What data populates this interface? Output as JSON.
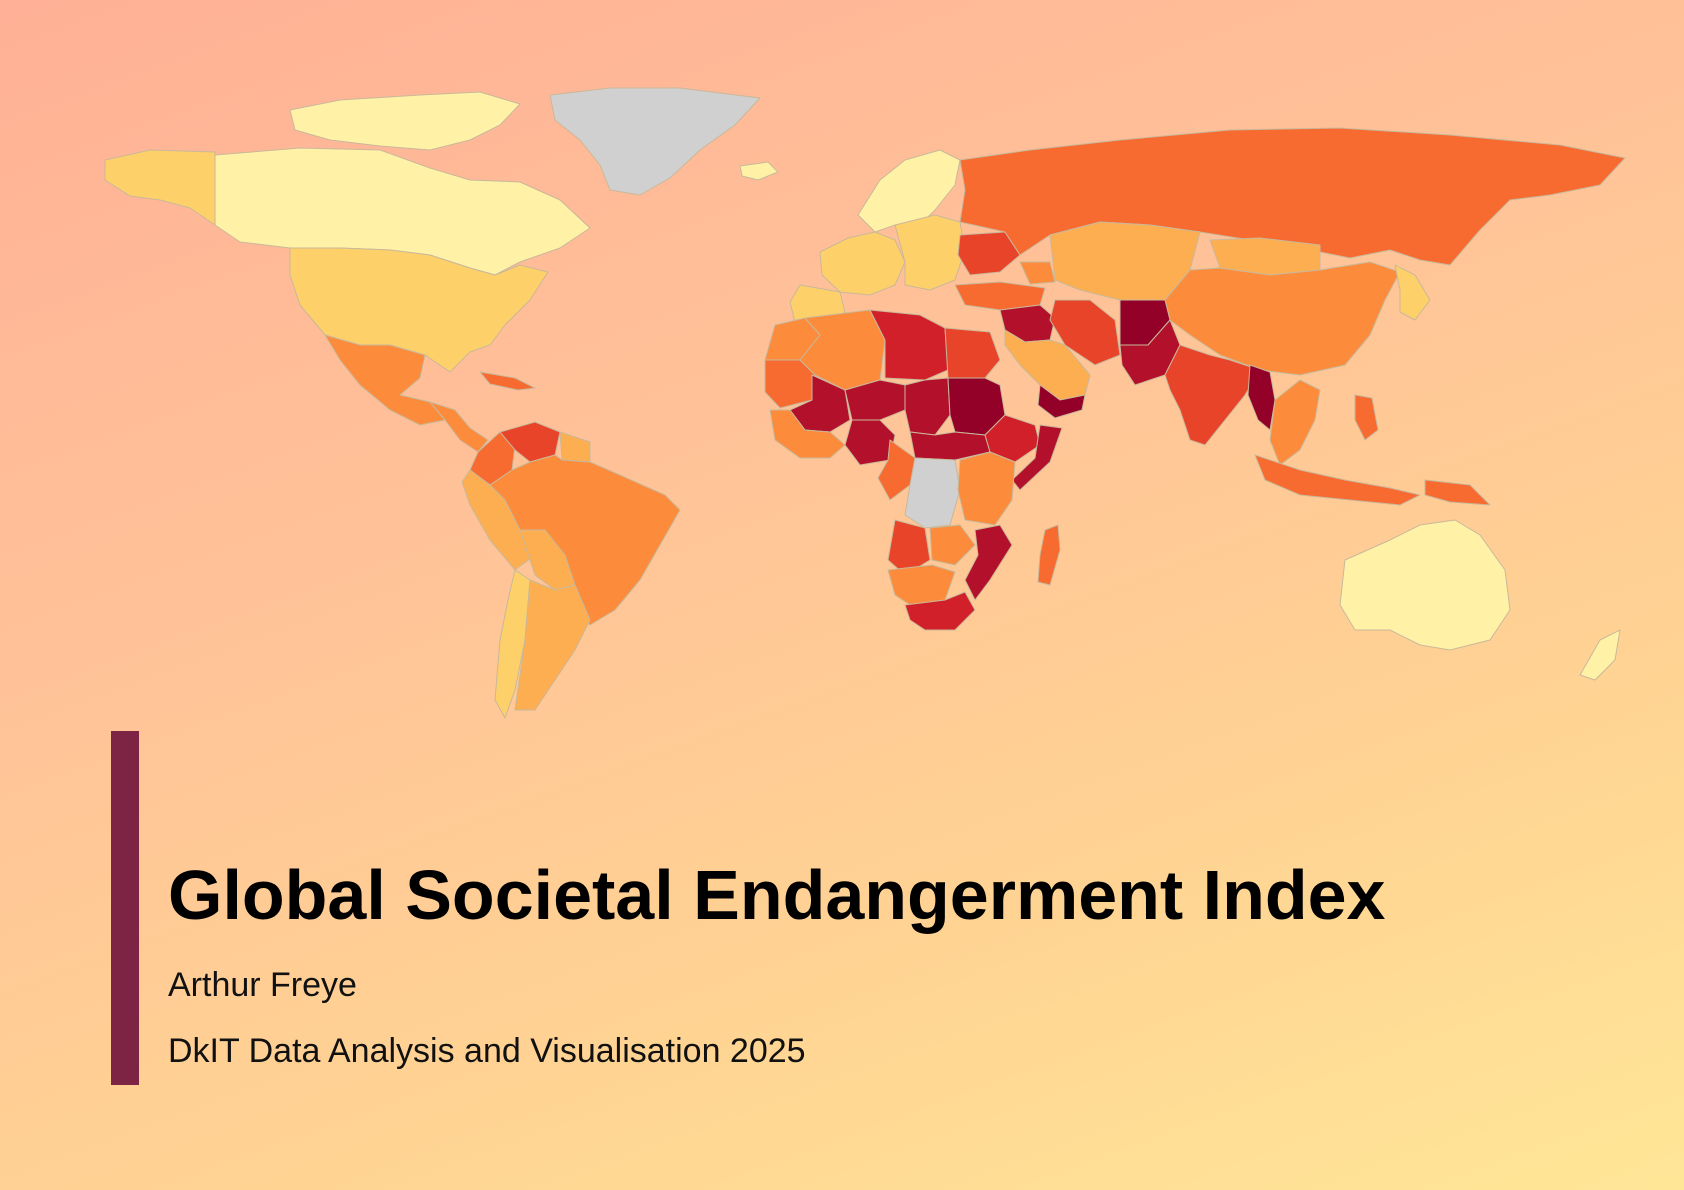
{
  "title": "Global Societal Endangerment Index",
  "author": "Arthur Freye",
  "course": "DkIT Data Analysis and Visualisation 2025",
  "colors": {
    "accent_bar": "#7d2343",
    "background_top": "#ffb096",
    "background_bottom": "#ffe697",
    "no_data": "#d0d0d0",
    "scale": [
      "#fff2a6",
      "#fed06a",
      "#fdae50",
      "#fc8c3b",
      "#f76a30",
      "#e8442a",
      "#d2202a",
      "#b3112b",
      "#930028"
    ]
  },
  "map": {
    "type": "choropleth",
    "regions": [
      {
        "name": "Canada",
        "level": 0
      },
      {
        "name": "Arctic Archipelago",
        "level": 0
      },
      {
        "name": "Alaska",
        "level": 1
      },
      {
        "name": "United States",
        "level": 1
      },
      {
        "name": "Mexico",
        "level": 3
      },
      {
        "name": "Central America",
        "level": 3
      },
      {
        "name": "Caribbean",
        "level": 4
      },
      {
        "name": "Greenland",
        "level": -1
      },
      {
        "name": "Iceland",
        "level": 0
      },
      {
        "name": "Colombia",
        "level": 4
      },
      {
        "name": "Venezuela",
        "level": 5
      },
      {
        "name": "Guianas",
        "level": 2
      },
      {
        "name": "Ecuador & Peru",
        "level": 2
      },
      {
        "name": "Brazil",
        "level": 3
      },
      {
        "name": "Bolivia & Paraguay",
        "level": 2
      },
      {
        "name": "Chile",
        "level": 1
      },
      {
        "name": "Argentina & Uruguay",
        "level": 2
      },
      {
        "name": "Scandinavia",
        "level": 0
      },
      {
        "name": "Western Europe",
        "level": 1
      },
      {
        "name": "Iberia",
        "level": 1
      },
      {
        "name": "Eastern Europe",
        "level": 1
      },
      {
        "name": "Ukraine",
        "level": 5
      },
      {
        "name": "Russia",
        "level": 4
      },
      {
        "name": "Turkey",
        "level": 4
      },
      {
        "name": "Caucasus",
        "level": 3
      },
      {
        "name": "Kazakhstan & Central Asia",
        "level": 2
      },
      {
        "name": "Mongolia",
        "level": 2
      },
      {
        "name": "China",
        "level": 3
      },
      {
        "name": "Korea & Japan",
        "level": 1
      },
      {
        "name": "Syria & Iraq",
        "level": 7
      },
      {
        "name": "Iran",
        "level": 5
      },
      {
        "name": "Afghanistan",
        "level": 8
      },
      {
        "name": "Pakistan",
        "level": 7
      },
      {
        "name": "Saudi Arabia & Gulf",
        "level": 2
      },
      {
        "name": "Yemen",
        "level": 8
      },
      {
        "name": "India",
        "level": 5
      },
      {
        "name": "Myanmar",
        "level": 8
      },
      {
        "name": "Mainland Southeast Asia",
        "level": 3
      },
      {
        "name": "Indonesia",
        "level": 4
      },
      {
        "name": "Philippines",
        "level": 4
      },
      {
        "name": "Papua New Guinea",
        "level": 4
      },
      {
        "name": "Australia",
        "level": 0
      },
      {
        "name": "New Zealand",
        "level": 0
      },
      {
        "name": "Morocco & Western Sahara",
        "level": 3
      },
      {
        "name": "Algeria",
        "level": 3
      },
      {
        "name": "Libya",
        "level": 6
      },
      {
        "name": "Egypt",
        "level": 5
      },
      {
        "name": "Mauritania",
        "level": 4
      },
      {
        "name": "Mali & Burkina Faso",
        "level": 7
      },
      {
        "name": "Niger",
        "level": 7
      },
      {
        "name": "Chad",
        "level": 7
      },
      {
        "name": "Sudan",
        "level": 8
      },
      {
        "name": "South Sudan & CAR",
        "level": 7
      },
      {
        "name": "Ethiopia",
        "level": 6
      },
      {
        "name": "Somalia",
        "level": 7
      },
      {
        "name": "Nigeria",
        "level": 7
      },
      {
        "name": "West Africa Coast",
        "level": 3
      },
      {
        "name": "Cameroon & Gabon",
        "level": 4
      },
      {
        "name": "DR Congo",
        "level": -1
      },
      {
        "name": "Kenya & Tanzania",
        "level": 3
      },
      {
        "name": "Angola",
        "level": 5
      },
      {
        "name": "Zambia",
        "level": 3
      },
      {
        "name": "Mozambique",
        "level": 7
      },
      {
        "name": "Namibia & Botswana",
        "level": 3
      },
      {
        "name": "South Africa",
        "level": 6
      },
      {
        "name": "Madagascar",
        "level": 4
      }
    ]
  }
}
